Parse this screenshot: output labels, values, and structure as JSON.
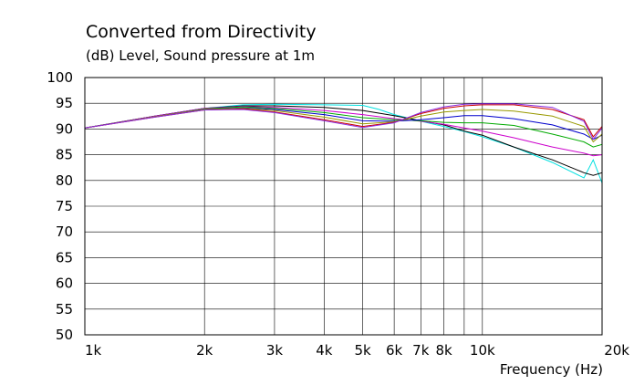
{
  "chart_data": {
    "type": "line",
    "title": "Converted from Directivity",
    "ylabel": "(dB)  Level, Sound pressure at 1m",
    "xlabel": "Frequency  (Hz)",
    "x_scale": "log",
    "xlim": [
      1000,
      20000
    ],
    "ylim": [
      50,
      100
    ],
    "y_ticks": [
      100,
      95,
      90,
      85,
      80,
      75,
      70,
      65,
      60,
      55,
      50
    ],
    "x_ticks": [
      {
        "value": 1000,
        "label": "1k"
      },
      {
        "value": 2000,
        "label": "2k"
      },
      {
        "value": 3000,
        "label": "3k"
      },
      {
        "value": 4000,
        "label": "4k"
      },
      {
        "value": 5000,
        "label": "5k"
      },
      {
        "value": 6000,
        "label": "6k"
      },
      {
        "value": 7000,
        "label": "7k"
      },
      {
        "value": 8000,
        "label": "8k"
      },
      {
        "value": 10000,
        "label": "10k"
      },
      {
        "value": 20000,
        "label": "20k"
      }
    ],
    "x_gridlines": [
      2000,
      3000,
      4000,
      5000,
      6000,
      7000,
      8000,
      9000,
      10000
    ],
    "grid": true,
    "series": [
      {
        "color": "#00e0e0",
        "x": [
          1000,
          1500,
          2000,
          2500,
          3000,
          4000,
          5000,
          5500,
          6000,
          7000,
          8000,
          9000,
          10000,
          12000,
          15000,
          18000,
          19000,
          20000
        ],
        "y": [
          90.2,
          92.5,
          94.0,
          94.7,
          94.8,
          94.7,
          94.6,
          93.8,
          92.8,
          91.5,
          90.5,
          89.5,
          88.5,
          86.5,
          83.5,
          80.5,
          84.0,
          79.5
        ]
      },
      {
        "color": "#000000",
        "x": [
          1000,
          1500,
          2000,
          2500,
          3000,
          4000,
          5000,
          6000,
          7000,
          8000,
          9000,
          10000,
          12000,
          15000,
          18000,
          19000,
          20000
        ],
        "y": [
          90.2,
          92.5,
          94.0,
          94.5,
          94.5,
          94.2,
          93.6,
          92.6,
          91.6,
          90.8,
          89.6,
          88.8,
          86.5,
          84.0,
          81.5,
          81.0,
          81.5
        ]
      },
      {
        "color": "#cc00cc",
        "x": [
          1000,
          1500,
          2000,
          2500,
          3000,
          4000,
          5000,
          6000,
          7000,
          8000,
          9000,
          10000,
          12000,
          15000,
          18000,
          19000,
          20000
        ],
        "y": [
          90.2,
          92.5,
          94.0,
          94.4,
          94.2,
          93.6,
          92.8,
          92.0,
          91.5,
          90.9,
          90.2,
          89.6,
          88.3,
          86.5,
          85.3,
          84.8,
          85.0
        ]
      },
      {
        "color": "#00aa00",
        "x": [
          1000,
          1500,
          2000,
          2500,
          3000,
          4000,
          5000,
          6000,
          7000,
          8000,
          9000,
          10000,
          12000,
          15000,
          18000,
          19000,
          20000
        ],
        "y": [
          90.2,
          92.4,
          93.9,
          94.3,
          94.0,
          93.2,
          92.2,
          91.8,
          91.6,
          91.3,
          91.2,
          91.2,
          90.7,
          89.0,
          87.5,
          86.5,
          87.0
        ]
      },
      {
        "color": "#0000cc",
        "x": [
          1000,
          1500,
          2000,
          2500,
          3000,
          4000,
          5000,
          6000,
          7000,
          8000,
          9000,
          10000,
          12000,
          15000,
          18000,
          19000,
          20000
        ],
        "y": [
          90.2,
          92.4,
          93.8,
          94.1,
          93.8,
          92.8,
          91.6,
          91.5,
          91.8,
          92.2,
          92.6,
          92.6,
          92.0,
          90.8,
          89.0,
          88.0,
          88.8
        ]
      },
      {
        "color": "#999900",
        "x": [
          1000,
          1500,
          2000,
          2500,
          3000,
          4000,
          5000,
          6000,
          7000,
          8000,
          9000,
          10000,
          12000,
          15000,
          18000,
          19000,
          20000
        ],
        "y": [
          90.2,
          92.4,
          93.8,
          94.0,
          93.6,
          92.3,
          91.0,
          91.4,
          92.5,
          93.3,
          93.6,
          93.8,
          93.5,
          92.5,
          90.5,
          87.5,
          89.0
        ]
      },
      {
        "color": "#cc0000",
        "x": [
          1000,
          1500,
          2000,
          2500,
          3000,
          4000,
          5000,
          6000,
          7000,
          8000,
          9000,
          10000,
          12000,
          15000,
          18000,
          19000,
          20000
        ],
        "y": [
          90.2,
          92.3,
          93.7,
          93.9,
          93.3,
          91.8,
          90.5,
          91.3,
          93.0,
          94.0,
          94.5,
          94.7,
          94.7,
          93.8,
          91.8,
          88.5,
          90.5
        ]
      },
      {
        "color": "#8a2be2",
        "x": [
          1000,
          1500,
          2000,
          2500,
          3000,
          4000,
          5000,
          6000,
          7000,
          8000,
          9000,
          10000,
          12000,
          15000,
          18000,
          19000,
          20000
        ],
        "y": [
          90.2,
          92.3,
          93.7,
          93.8,
          93.2,
          91.6,
          90.3,
          91.2,
          93.2,
          94.3,
          94.8,
          94.9,
          94.9,
          94.2,
          91.5,
          88.0,
          90.2
        ]
      }
    ]
  }
}
